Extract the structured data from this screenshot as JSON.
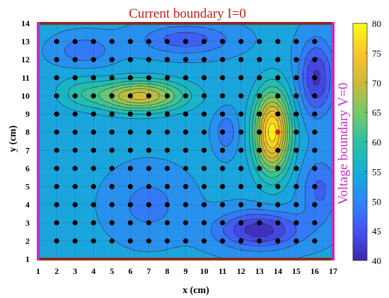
{
  "chart_data": {
    "type": "heatmap",
    "style": "filled-contour with sample-point markers",
    "title": "",
    "top_annotation": "Current boundary I=0",
    "right_annotation": "Voltage boundary V=0",
    "xlabel": "x (cm)",
    "ylabel": "y (cm)",
    "xlim": [
      1,
      17
    ],
    "ylim": [
      1,
      14
    ],
    "xticks": [
      "1",
      "2",
      "3",
      "4",
      "5",
      "6",
      "7",
      "8",
      "9",
      "10",
      "11",
      "12",
      "13",
      "14",
      "15",
      "16",
      "17"
    ],
    "yticks": [
      "1",
      "2",
      "3",
      "4",
      "5",
      "6",
      "7",
      "8",
      "9",
      "10",
      "11",
      "12",
      "13",
      "14"
    ],
    "grid": true,
    "colormap": "parula",
    "colorbar": {
      "range": [
        40,
        80
      ],
      "ticks": [
        "40",
        "45",
        "50",
        "55",
        "60",
        "65",
        "70",
        "75",
        "80"
      ],
      "placement": "right"
    },
    "sample_points": {
      "x_range": [
        2,
        16
      ],
      "y_range": [
        2,
        13
      ],
      "highlighted_point": {
        "x": 14,
        "y": 8,
        "color": "#d81e1e"
      }
    },
    "field_features": [
      {
        "description": "high ridge",
        "center": [
          6.5,
          10
        ],
        "peak": 72
      },
      {
        "description": "high peak",
        "center": [
          13.7,
          8
        ],
        "peak": 78
      },
      {
        "description": "low region",
        "center": [
          13,
          2.6
        ],
        "min": 42
      },
      {
        "description": "low region",
        "center": [
          16.1,
          11
        ],
        "min": 43
      },
      {
        "description": "low region",
        "center": [
          9,
          13.1
        ],
        "min": 46
      },
      {
        "description": "low region",
        "center": [
          3.5,
          12.5
        ],
        "min": 47
      }
    ],
    "colors": {
      "top_boundary": "#8b2a1c",
      "right_boundary": "#c22ec2",
      "annotation_top": "#c0201c",
      "annotation_right": "#c22ec2",
      "points": "#000000"
    }
  }
}
